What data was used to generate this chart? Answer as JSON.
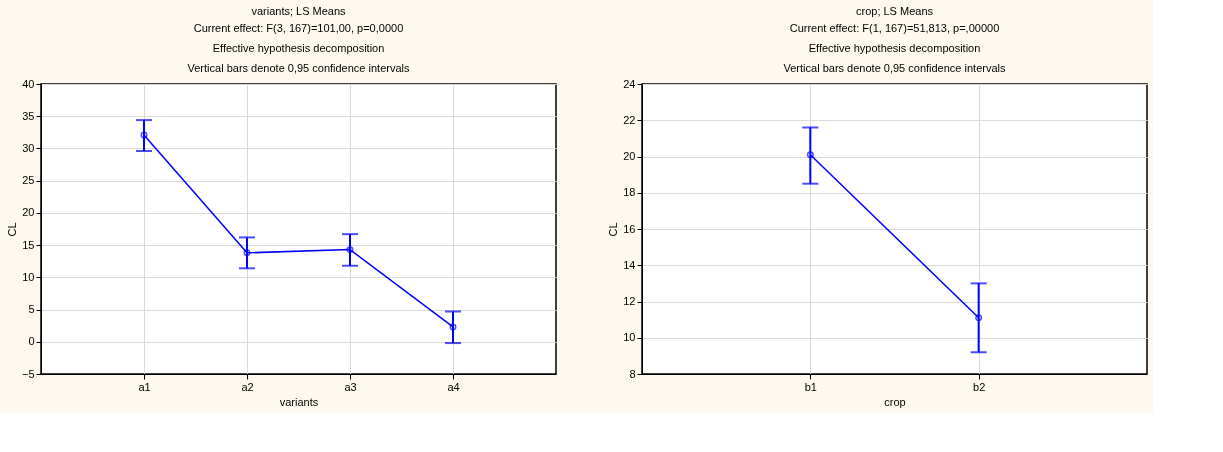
{
  "chart_data": [
    {
      "type": "line",
      "title": "variants; LS Means",
      "subtitle": "Current effect: F(3, 167)=101,00, p=0,0000\nEffective hypothesis decomposition\nVertical bars denote 0,95 confidence intervals",
      "xlabel": "variants",
      "ylabel": "CL",
      "categories": [
        "a1",
        "a2",
        "a3",
        "a4"
      ],
      "series": [
        {
          "color": "#0000ff",
          "values": [
            32.1,
            13.8,
            14.3,
            2.3
          ],
          "errors": [
            [
              29.6,
              34.4
            ],
            [
              11.4,
              16.2
            ],
            [
              11.8,
              16.7
            ],
            [
              -0.2,
              4.7
            ]
          ]
        }
      ],
      "ylim": [
        -5,
        40
      ],
      "yticks": [
        -5,
        0,
        5,
        10,
        15,
        20,
        25,
        30,
        35,
        40
      ],
      "grid": true,
      "marker": "circle",
      "line_style": "solid"
    },
    {
      "type": "line",
      "title": "crop; LS Means",
      "subtitle": "Current effect: F(1, 167)=51,813, p=,00000\nEffective hypothesis decomposition\nVertical bars denote 0,95 confidence intervals",
      "xlabel": "crop",
      "ylabel": "CL",
      "categories": [
        "b1",
        "b2"
      ],
      "series": [
        {
          "color": "#0000ff",
          "values": [
            20.1,
            11.1
          ],
          "errors": [
            [
              18.5,
              21.6
            ],
            [
              9.2,
              13.0
            ]
          ]
        }
      ],
      "ylim": [
        8,
        24
      ],
      "yticks": [
        8,
        10,
        12,
        14,
        16,
        18,
        20,
        22,
        24
      ],
      "grid": true,
      "marker": "circle",
      "line_style": "solid"
    }
  ]
}
